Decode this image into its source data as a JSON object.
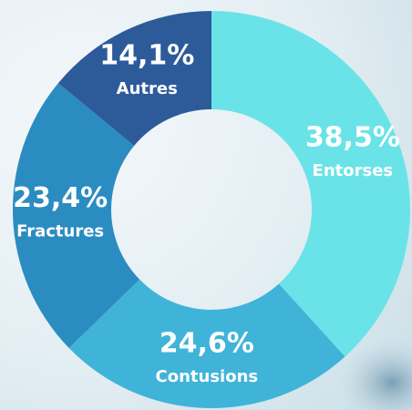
{
  "chart_data": {
    "type": "donut",
    "categories": [
      "Entorses",
      "Contusions",
      "Fractures",
      "Autres"
    ],
    "values": [
      38.5,
      24.6,
      23.4,
      14.1
    ],
    "value_labels": [
      "38,5%",
      "24,6%",
      "23,4%",
      "14,1%"
    ],
    "colors": [
      "#6ae3e8",
      "#3fb4d8",
      "#2b8cc1",
      "#2d5b9a"
    ]
  }
}
